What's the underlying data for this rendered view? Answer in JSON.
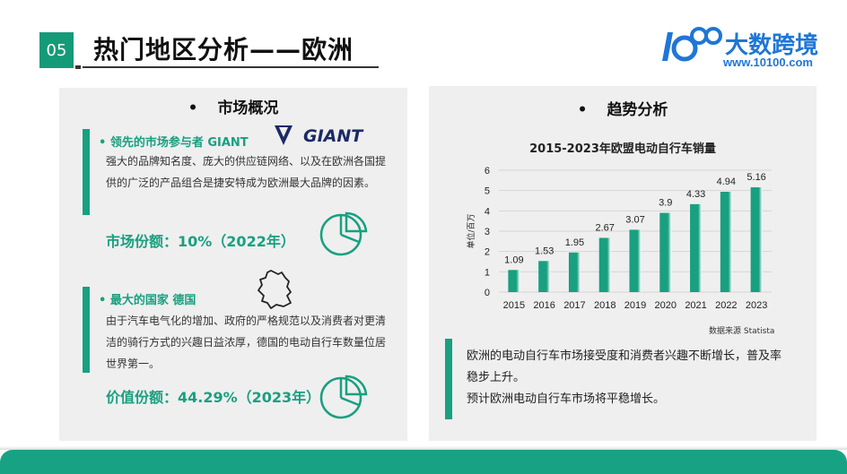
{
  "header": {
    "section_number": "05",
    "title": "热门地区分析——欧洲",
    "brand_name": "大数跨境",
    "brand_url": "www.10100.com",
    "brand_color": "#1f76d6"
  },
  "market": {
    "heading_bullet": "•",
    "heading": "市场概况",
    "leader": {
      "title": "• 领先的市场参与者 GIANT",
      "logo_text": "GIANT",
      "description": "强大的品牌知名度、庞大的供应链网络、以及在欧洲各国提供的广泛的产品组合是捷安特成为欧洲最大品牌的因素。",
      "share": "市场份额：10%（2022年）",
      "share_value": 10
    },
    "country": {
      "title": "• 最大的国家 德国",
      "description": "由于汽车电气化的增加、政府的严格规范以及消费者对更清洁的骑行方式的兴趣日益浓厚，德国的电动自行车数量位居世界第一。",
      "share": "价值份额：44.29%（2023年）",
      "share_value": 44.29
    },
    "icons": [
      "giant-logo-icon",
      "pie-chart-icon",
      "germany-map-icon"
    ]
  },
  "trend": {
    "heading_bullet": "•",
    "heading": "趋势分析",
    "source": "数据来源 Statista",
    "text": "欧洲的电动自行车市场接受度和消费者兴趣不断增长，普及率稳步上升。\n预计欧洲电动自行车市场将平稳增长。"
  },
  "colors": {
    "accent": "#18a080",
    "panel_bg": "#efefef",
    "footer": "#17a383"
  },
  "chart_data": {
    "type": "bar",
    "title": "2015-2023年欧盟电动自行车销量",
    "xlabel": "",
    "ylabel": "单位/百万",
    "categories": [
      "2015",
      "2016",
      "2017",
      "2018",
      "2019",
      "2020",
      "2021",
      "2022",
      "2023"
    ],
    "values": [
      1.09,
      1.53,
      1.95,
      2.67,
      3.07,
      3.9,
      4.33,
      4.94,
      5.16
    ],
    "ylim": [
      0,
      6
    ],
    "yticks": [
      0,
      1,
      2,
      3,
      4,
      5,
      6
    ],
    "grid": true,
    "data_labels": true,
    "bar_color": "#18a080"
  }
}
